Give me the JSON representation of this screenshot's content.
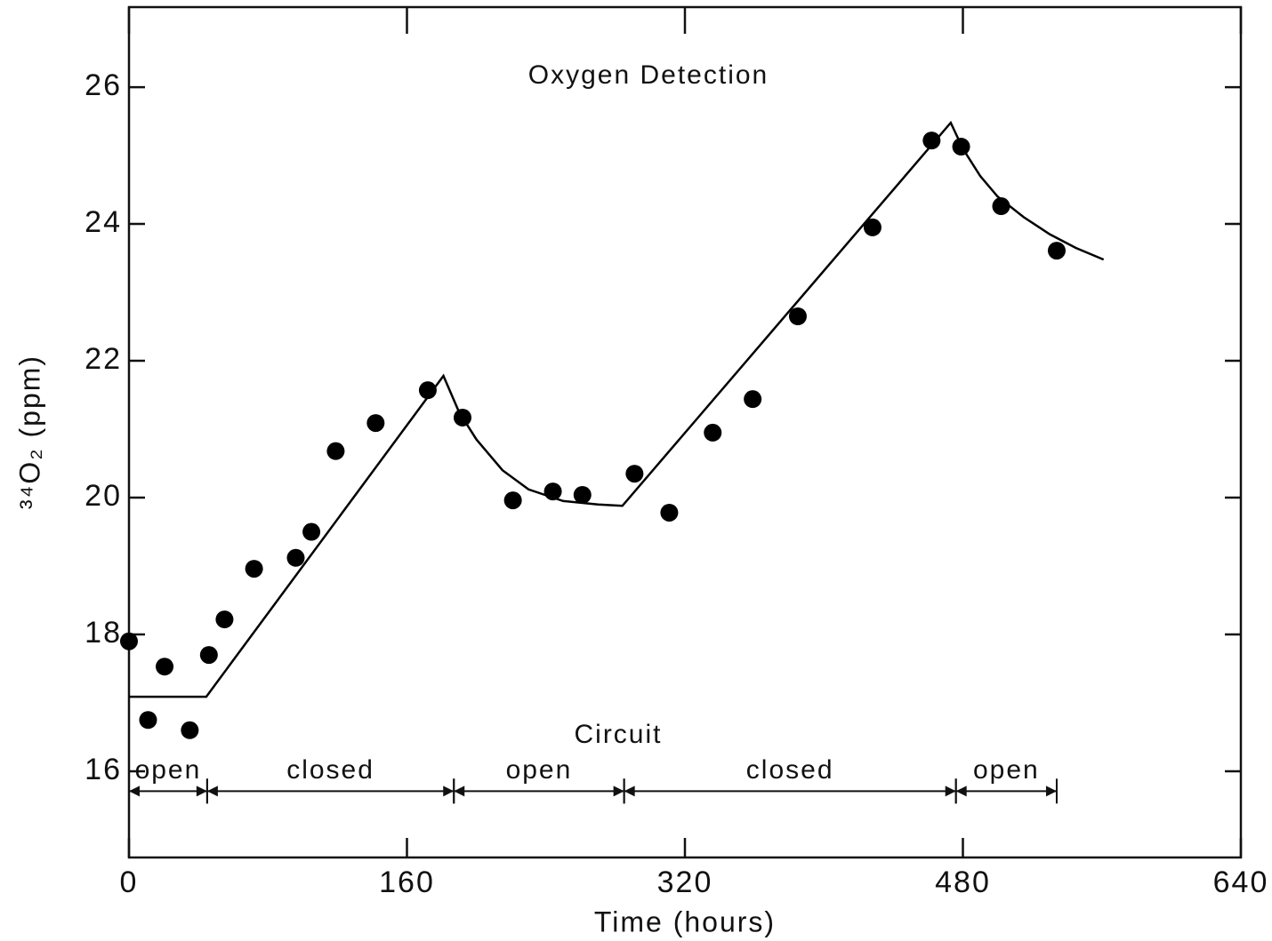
{
  "chart_data": {
    "type": "scatter",
    "title": "Oxygen Detection",
    "xlabel": "Time (hours)",
    "ylabel": "³⁴O₂ (ppm)",
    "xlim": [
      0,
      640
    ],
    "ylim": [
      14.74,
      27.17
    ],
    "xticks": [
      0,
      160,
      320,
      480,
      640
    ],
    "yticks": [
      16,
      18,
      20,
      22,
      24,
      26
    ],
    "grid": false,
    "series": [
      {
        "style": "markers",
        "color": "#000000",
        "x": [
          0,
          11,
          20.5,
          35,
          46,
          55,
          72,
          96,
          105,
          119,
          142,
          172,
          192,
          221,
          244,
          261,
          291,
          311,
          336,
          359,
          385,
          428,
          462,
          479,
          502,
          534
        ],
        "values": [
          17.9,
          16.75,
          17.53,
          16.6,
          17.7,
          18.22,
          18.96,
          19.12,
          19.5,
          20.68,
          21.09,
          21.57,
          21.17,
          19.96,
          20.09,
          20.04,
          20.35,
          19.78,
          20.95,
          21.44,
          22.65,
          23.95,
          25.22,
          25.13,
          24.26,
          23.61
        ]
      },
      {
        "style": "line",
        "color": "#000000",
        "x": [
          0,
          44.5,
          181,
          190,
          200,
          215,
          230,
          250,
          270,
          284,
          473,
          480,
          490,
          500,
          515,
          530,
          545,
          561
        ],
        "values": [
          17.09,
          17.09,
          21.78,
          21.25,
          20.85,
          20.4,
          20.12,
          19.95,
          19.9,
          19.88,
          25.48,
          25.1,
          24.7,
          24.4,
          24.1,
          23.85,
          23.65,
          23.48
        ]
      }
    ],
    "annotation_title": "Circuit",
    "annotation_y": 15.71,
    "annotations": [
      {
        "text": "open",
        "x": [
          0,
          45
        ]
      },
      {
        "text": "closed",
        "x": [
          45,
          187
        ]
      },
      {
        "text": "open",
        "x": [
          187,
          285
        ]
      },
      {
        "text": "closed",
        "x": [
          285,
          476
        ]
      },
      {
        "text": "open",
        "x": [
          476,
          534
        ]
      }
    ]
  }
}
